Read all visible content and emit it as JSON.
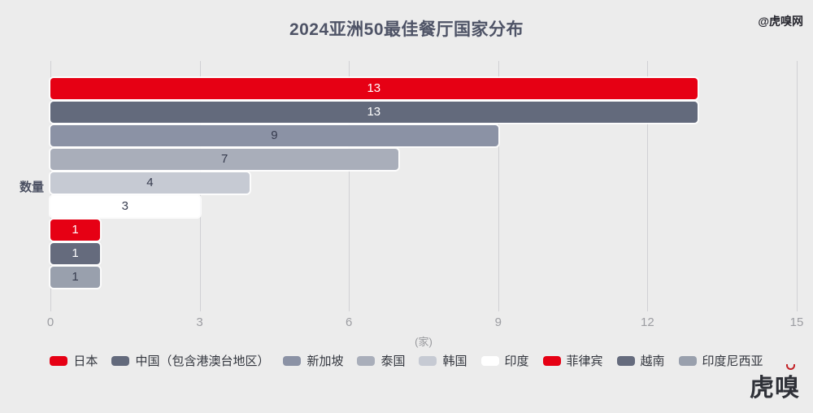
{
  "header": {
    "watermark": "@虎嗅网"
  },
  "chart_data": {
    "type": "bar",
    "orientation": "horizontal",
    "title": "2024亚洲50最佳餐厅国家分布",
    "ylabel": "数量",
    "xunit": "(家)",
    "xlim": [
      0,
      15
    ],
    "xticks": [
      0,
      3,
      6,
      9,
      12,
      15
    ],
    "grid": true,
    "legend_position": "bottom",
    "categories": [
      "日本",
      "中国（包含港澳台地区）",
      "新加坡",
      "泰国",
      "韩国",
      "印度",
      "菲律宾",
      "越南",
      "印度尼西亚"
    ],
    "values": [
      13,
      13,
      9,
      7,
      4,
      3,
      1,
      1,
      1
    ],
    "bar_colors": [
      "#e60014",
      "#636a7c",
      "#8b92a5",
      "#a9aeba",
      "#c6cad3",
      "#ffffff",
      "#e60014",
      "#656b7d",
      "#99a0ad"
    ],
    "value_label_colors": [
      "#ffffff",
      "#ffffff",
      "#363b4e",
      "#363b4e",
      "#363b4e",
      "#363b4e",
      "#ffffff",
      "#ffffff",
      "#363b4e"
    ]
  },
  "footer": {
    "logo": "虎嗅"
  }
}
